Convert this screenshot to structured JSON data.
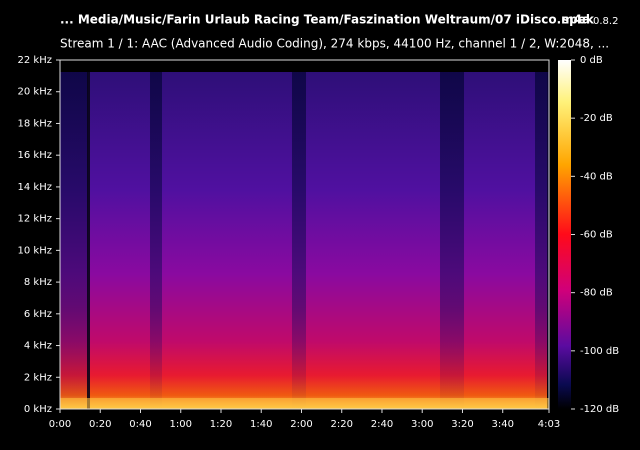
{
  "chart_data": {
    "type": "spectrogram",
    "title": "... Media/Music/Farin Urlaub Racing Team/Faszination Weltraum/07 iDisco.m4a",
    "app_name": "spek",
    "app_version": "0.8.2",
    "subtitle": "Stream 1 / 1: AAC (Advanced Audio Coding), 274 kbps, 44100 Hz, channel 1 / 2, W:2048, ...",
    "xlim": [
      0,
      243
    ],
    "xticks": [
      {
        "value": 0,
        "label": "0:00"
      },
      {
        "value": 20,
        "label": "0:20"
      },
      {
        "value": 40,
        "label": "0:40"
      },
      {
        "value": 60,
        "label": "1:00"
      },
      {
        "value": 80,
        "label": "1:20"
      },
      {
        "value": 100,
        "label": "1:40"
      },
      {
        "value": 120,
        "label": "2:00"
      },
      {
        "value": 140,
        "label": "2:20"
      },
      {
        "value": 160,
        "label": "2:40"
      },
      {
        "value": 180,
        "label": "3:00"
      },
      {
        "value": 200,
        "label": "3:20"
      },
      {
        "value": 220,
        "label": "3:40"
      },
      {
        "value": 243,
        "label": "4:03"
      }
    ],
    "ylim": [
      0,
      22
    ],
    "yticks": [
      {
        "value": 0,
        "label": "0 kHz"
      },
      {
        "value": 2,
        "label": "2 kHz"
      },
      {
        "value": 4,
        "label": "4 kHz"
      },
      {
        "value": 6,
        "label": "6 kHz"
      },
      {
        "value": 8,
        "label": "8 kHz"
      },
      {
        "value": 10,
        "label": "10 kHz"
      },
      {
        "value": 12,
        "label": "12 kHz"
      },
      {
        "value": 14,
        "label": "14 kHz"
      },
      {
        "value": 16,
        "label": "16 kHz"
      },
      {
        "value": 18,
        "label": "18 kHz"
      },
      {
        "value": 20,
        "label": "20 kHz"
      },
      {
        "value": 22,
        "label": "22 kHz"
      }
    ],
    "zlim": [
      -120,
      0
    ],
    "zticks": [
      {
        "value": 0,
        "label": "0 dB"
      },
      {
        "value": -20,
        "label": "-20 dB"
      },
      {
        "value": -40,
        "label": "-40 dB"
      },
      {
        "value": -60,
        "label": "-60 dB"
      },
      {
        "value": -80,
        "label": "-80 dB"
      },
      {
        "value": -100,
        "label": "-100 dB"
      },
      {
        "value": -120,
        "label": "-120 dB"
      }
    ]
  }
}
